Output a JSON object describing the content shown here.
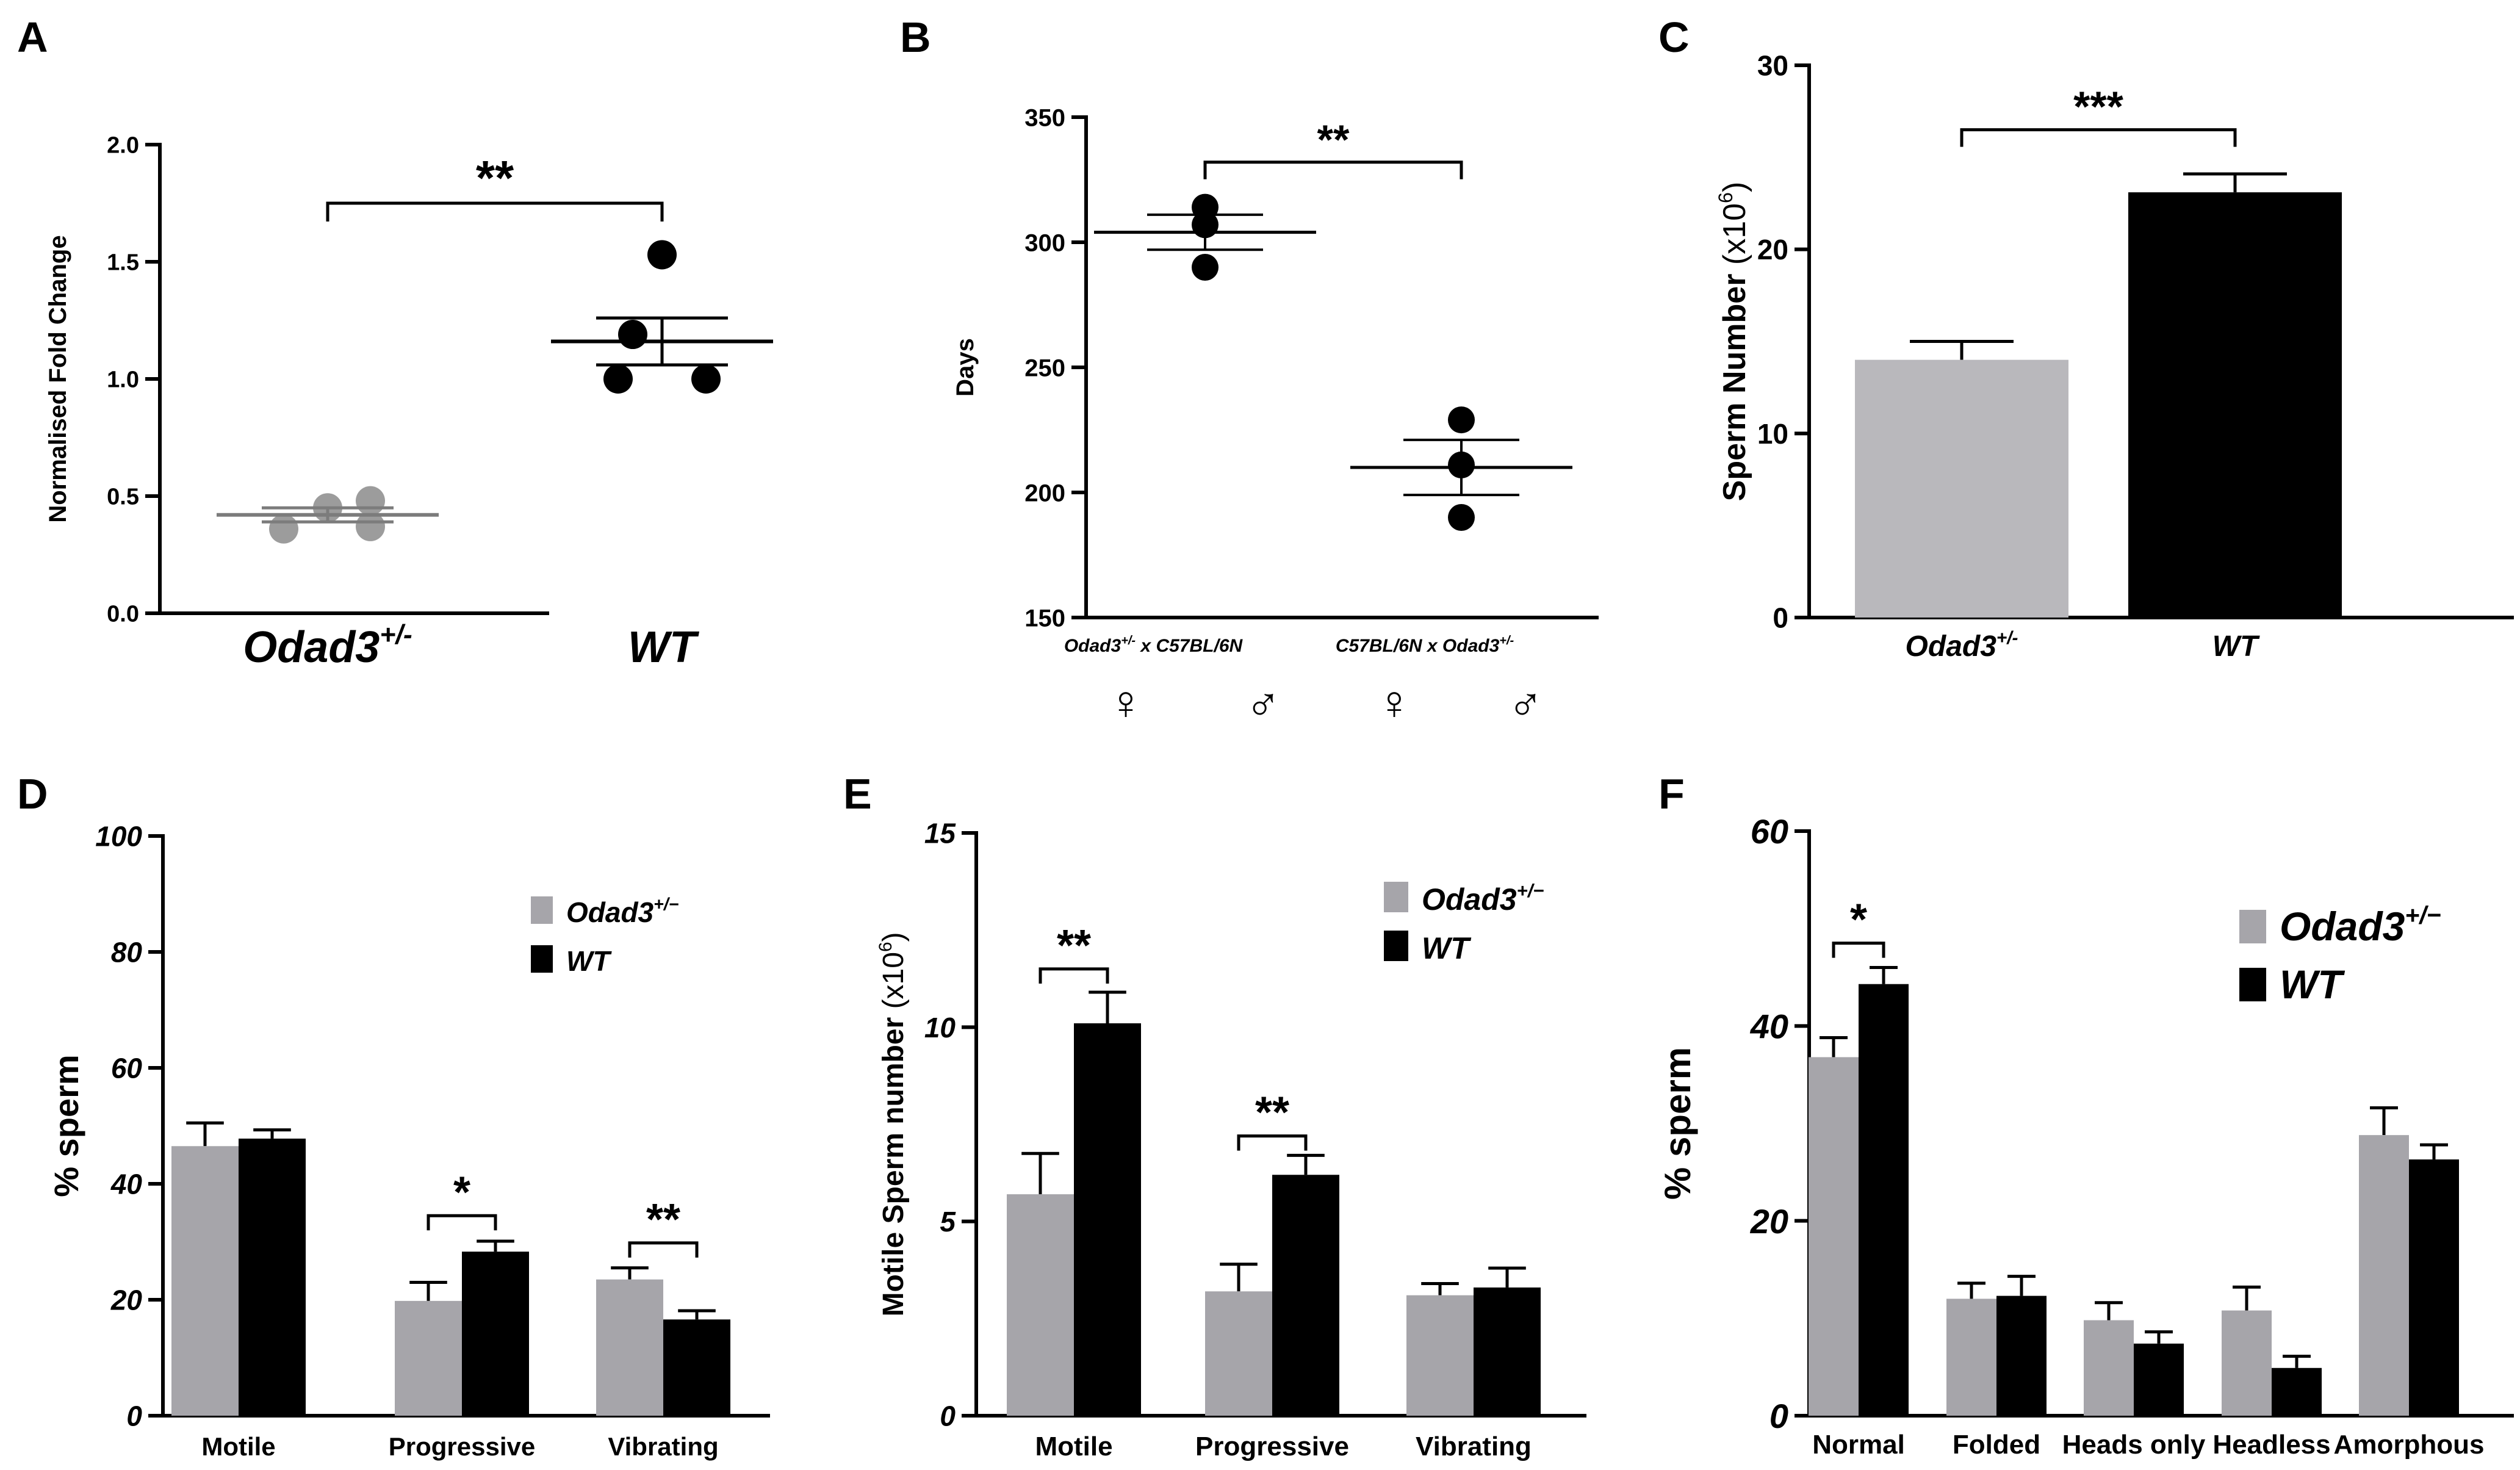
{
  "colors": {
    "gray": "#a6a5aa",
    "lightgray": "#b9b8bc",
    "black": "#000000"
  },
  "chart_data": [
    {
      "id": "A",
      "panel_label": "A",
      "type": "scatter",
      "ylabel": "Normalised Fold Change",
      "ylim": [
        0,
        2.0
      ],
      "yticks": [
        0.0,
        0.5,
        1.0,
        1.5,
        2.0
      ],
      "ytick_labels": [
        "0.0",
        "0.5",
        "1.0",
        "1.5",
        "2.0"
      ],
      "groups": [
        {
          "base": "Odad3",
          "sup": "+/-",
          "color": "#9c9c9c",
          "values": [
            0.36,
            0.45,
            0.48,
            0.37
          ],
          "mean": 0.42,
          "sem": 0.03
        },
        {
          "base": "WT",
          "sup": "",
          "color": "#000000",
          "values": [
            1.53,
            1.19,
            1.0,
            1.0
          ],
          "mean": 1.16,
          "sem": 0.1
        }
      ],
      "significance": [
        {
          "from": 0,
          "to": 1,
          "label": "**",
          "y": 1.75
        }
      ]
    },
    {
      "id": "B",
      "panel_label": "B",
      "type": "scatter",
      "ylabel": "Days",
      "ylim": [
        150,
        350
      ],
      "yticks": [
        150,
        200,
        250,
        300,
        350
      ],
      "ytick_labels": [
        "150",
        "200",
        "250",
        "300",
        "350"
      ],
      "groups": [
        {
          "label": "Odad3+/- x C57BL/6N",
          "color": "#000000",
          "values": [
            314,
            307,
            290
          ],
          "mean": 304,
          "sem": 7
        },
        {
          "label": "C57BL/6N x Odad3+/-",
          "color": "#000000",
          "values": [
            229,
            211,
            190
          ],
          "mean": 210,
          "sem": 11
        }
      ],
      "cross_labels": [
        {
          "a": "Odad3",
          "a_sup": "+/-",
          "x": " x ",
          "b": "C57BL/6N"
        },
        {
          "a": "C57BL/6N",
          "x": " x ",
          "b": "Odad3",
          "b_sup": "+/-"
        }
      ],
      "sex_symbols": [
        "♀",
        "♂",
        "♀",
        "♂"
      ],
      "significance": [
        {
          "from": 0,
          "to": 1,
          "label": "**",
          "y": 332
        }
      ]
    },
    {
      "id": "C",
      "panel_label": "C",
      "type": "bar",
      "ylabel": "Sperm Number",
      "ylabel_unit_pre": "(x10",
      "ylabel_unit_sup": "6",
      "ylabel_unit_post": ")",
      "ylim": [
        0,
        30
      ],
      "yticks": [
        0,
        10,
        20,
        30
      ],
      "ytick_labels": [
        "0",
        "10",
        "20",
        "30"
      ],
      "categories": [
        {
          "base": "Odad3",
          "sup": "+/-"
        },
        {
          "base": "WT",
          "sup": ""
        }
      ],
      "values": [
        14.0,
        23.1
      ],
      "errors": [
        1.0,
        1.0
      ],
      "colors": [
        "#b9b8bc",
        "#000000"
      ],
      "significance": [
        {
          "from": 0,
          "to": 1,
          "label": "***",
          "y": 26.5
        }
      ]
    },
    {
      "id": "D",
      "panel_label": "D",
      "type": "bar",
      "ylabel": "% sperm",
      "ylim": [
        0,
        100
      ],
      "yticks": [
        0,
        20,
        40,
        60,
        80,
        100
      ],
      "ytick_labels": [
        "0",
        "20",
        "40",
        "60",
        "80",
        "100"
      ],
      "categories": [
        "Motile",
        "Progressive",
        "Vibrating"
      ],
      "series": [
        {
          "name": "Odad3",
          "sup": "+/−",
          "color": "#a6a5aa",
          "values": [
            46.5,
            19.8,
            23.5
          ],
          "errors": [
            4.0,
            3.2,
            2.0
          ]
        },
        {
          "name": "WT",
          "sup": "",
          "color": "#000000",
          "values": [
            47.8,
            28.3,
            16.6
          ],
          "errors": [
            1.5,
            1.8,
            1.5
          ]
        }
      ],
      "significance": [
        {
          "category": 1,
          "label": "*",
          "y": 34.5
        },
        {
          "category": 2,
          "label": "**",
          "y": 29.8
        }
      ]
    },
    {
      "id": "E",
      "panel_label": "E",
      "type": "bar",
      "ylabel": "Motile Sperm number",
      "ylabel_unit_pre": "(x10",
      "ylabel_unit_sup": "6",
      "ylabel_unit_post": ")",
      "ylim": [
        0,
        15
      ],
      "yticks": [
        0,
        5,
        10,
        15
      ],
      "ytick_labels": [
        "0",
        "5",
        "10",
        "15"
      ],
      "categories": [
        "Motile",
        "Progressive",
        "Vibrating"
      ],
      "series": [
        {
          "name": "Odad3",
          "sup": "+/−",
          "color": "#a6a5aa",
          "values": [
            5.7,
            3.2,
            3.1
          ],
          "errors": [
            1.05,
            0.7,
            0.3
          ]
        },
        {
          "name": "WT",
          "sup": "",
          "color": "#000000",
          "values": [
            10.1,
            6.2,
            3.3
          ],
          "errors": [
            0.8,
            0.5,
            0.5
          ]
        }
      ],
      "significance": [
        {
          "category": 0,
          "label": "**",
          "y": 11.5
        },
        {
          "category": 1,
          "label": "**",
          "y": 7.2
        }
      ]
    },
    {
      "id": "F",
      "panel_label": "F",
      "type": "bar",
      "ylabel": "% sperm",
      "ylim": [
        0,
        60
      ],
      "yticks": [
        0,
        20,
        40,
        60
      ],
      "ytick_labels": [
        "0",
        "20",
        "40",
        "60"
      ],
      "categories": [
        "Normal",
        "Folded",
        "Heads only",
        "Headless",
        "Amorphous"
      ],
      "series": [
        {
          "name": "Odad3",
          "sup": "+/−",
          "color": "#a6a5aa",
          "values": [
            36.8,
            12.0,
            9.8,
            10.8,
            28.8
          ],
          "errors": [
            2.0,
            1.6,
            1.8,
            2.4,
            2.8
          ]
        },
        {
          "name": "WT",
          "sup": "",
          "color": "#000000",
          "values": [
            44.3,
            12.3,
            7.4,
            4.9,
            26.3
          ],
          "errors": [
            1.7,
            2.0,
            1.2,
            1.2,
            1.5
          ]
        }
      ],
      "significance": [
        {
          "category": 0,
          "label": "*",
          "y": 48.5
        }
      ]
    }
  ]
}
